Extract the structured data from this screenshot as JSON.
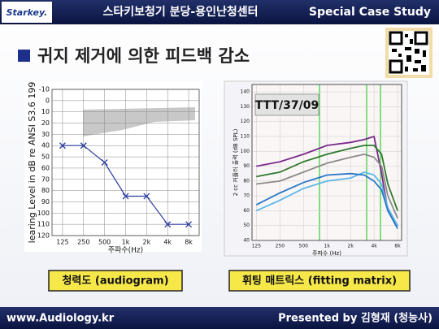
{
  "header": {
    "logo": "Starkey.",
    "center": "스타키보청기 분당-용인난청센터",
    "right": "Special Case Study"
  },
  "title": "귀지 제거에 의한 피드백 감소",
  "chart_data": [
    {
      "type": "line",
      "xlabel": "주파수(Hz)",
      "ylabel": "learing Level in dB re ANSI S3.6 199",
      "categories": [
        "125",
        "250",
        "500",
        "1k",
        "2k",
        "4k",
        "8k"
      ],
      "series": [
        {
          "color": "#2b3c9e",
          "marker": "x",
          "values": [
            40,
            40,
            55,
            85,
            85,
            110,
            110
          ]
        }
      ],
      "ylim": [
        -10,
        120
      ],
      "yticks": [
        -10,
        0,
        10,
        20,
        30,
        40,
        50,
        60,
        70,
        80,
        90,
        100,
        110,
        120
      ],
      "y_inverted": true,
      "grid": true
    },
    {
      "type": "line",
      "annotation": "TTT/37/09",
      "xlabel": "주파수 (Hz)",
      "ylabel": "2 cc 커플러 출력 (dB SPL)",
      "x": [
        125,
        250,
        500,
        1000,
        2000,
        3000,
        4000,
        5000,
        6000,
        8000
      ],
      "xscale": "log",
      "xlim": [
        110,
        9000
      ],
      "xticks": [
        125,
        250,
        500,
        {
          "value": 1000,
          "label": "1k"
        },
        {
          "value": 2000,
          "label": "2k"
        },
        {
          "value": 4000,
          "label": "4k"
        },
        {
          "value": 8000,
          "label": "8k"
        }
      ],
      "series": [
        {
          "color": "#7b2a8c",
          "values": [
            90,
            93,
            98,
            104,
            106,
            108,
            110,
            85,
            60,
            50
          ]
        },
        {
          "color": "#2f7a2f",
          "values": [
            83,
            86,
            93,
            98,
            102,
            104,
            104,
            98,
            78,
            60
          ]
        },
        {
          "color": "#8a8a8a",
          "values": [
            78,
            80,
            86,
            92,
            96,
            98,
            96,
            90,
            70,
            55
          ]
        },
        {
          "color": "#5ab8e8",
          "values": [
            60,
            67,
            75,
            80,
            82,
            86,
            84,
            78,
            62,
            50
          ]
        },
        {
          "color": "#2a78c8",
          "values": [
            64,
            72,
            79,
            84,
            85,
            84,
            80,
            74,
            60,
            48
          ]
        }
      ],
      "ylim": [
        40,
        145
      ],
      "yticks": [
        40,
        50,
        60,
        70,
        80,
        90,
        100,
        110,
        120,
        130,
        140
      ],
      "grid": true
    }
  ],
  "captions": [
    "청력도 (audiogram)",
    "휘팅 매트릭스 (fitting matrix)"
  ],
  "footer": {
    "left": "www.Audiology.kr",
    "right": "Presented by 김형재 (청능사)"
  }
}
